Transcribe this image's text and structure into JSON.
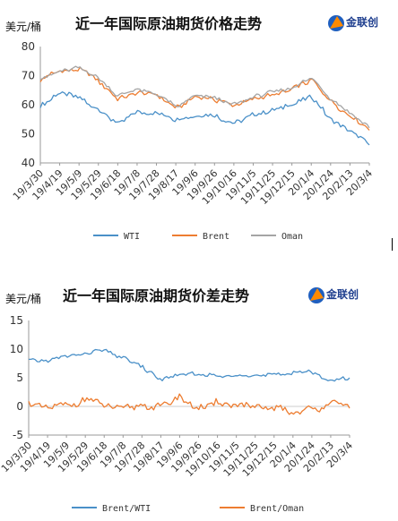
{
  "page": {
    "width": 444,
    "height": 582
  },
  "logo": {
    "text": "金联创"
  },
  "chart_data": [
    {
      "type": "line",
      "title": "近一年国际原油期货价格走势",
      "ylabel": "美元/桶",
      "ylim": [
        40,
        80
      ],
      "yticks": [
        40,
        50,
        60,
        70,
        80
      ],
      "categories": [
        "19/3/30",
        "19/4/19",
        "19/5/9",
        "19/5/29",
        "19/6/18",
        "19/7/8",
        "19/7/28",
        "19/8/17",
        "19/9/6",
        "19/9/26",
        "19/10/16",
        "19/11/5",
        "19/11/25",
        "19/12/15",
        "20/1/4",
        "20/1/24",
        "20/2/13",
        "20/3/4"
      ],
      "series": [
        {
          "name": "WTI",
          "color": "#4a90c8",
          "values": [
            60.1,
            63.8,
            62.5,
            58.2,
            53.5,
            57.3,
            56.8,
            55.1,
            56.5,
            56.2,
            53.9,
            56.7,
            57.9,
            60.2,
            62.9,
            55.2,
            51.5,
            46.3
          ]
        },
        {
          "name": "Brent",
          "color": "#ed7d31",
          "values": [
            68.4,
            71.9,
            72.4,
            68.3,
            62.1,
            64.3,
            63.2,
            58.6,
            62.5,
            62.0,
            59.4,
            62.1,
            63.4,
            65.3,
            68.6,
            61.1,
            56.3,
            51.5
          ]
        },
        {
          "name": "Oman",
          "color": "#a5a5a5",
          "values": [
            68.9,
            71.5,
            72.8,
            69.4,
            62.9,
            65.1,
            64.0,
            59.4,
            62.9,
            62.5,
            59.8,
            62.7,
            64.1,
            65.8,
            69.3,
            62.0,
            56.9,
            52.3
          ]
        }
      ]
    },
    {
      "type": "line",
      "title": "近一年国际原油期货价差走势",
      "ylabel": "美元/桶",
      "ylim": [
        -5,
        15
      ],
      "yticks": [
        -5,
        0,
        5,
        10,
        15
      ],
      "categories": [
        "19/3/30",
        "19/4/19",
        "19/5/9",
        "19/5/29",
        "19/6/18",
        "19/7/8",
        "19/7/28",
        "19/8/17",
        "19/9/6",
        "19/9/26",
        "19/10/16",
        "19/11/5",
        "19/11/25",
        "19/12/15",
        "20/1/4",
        "20/1/24",
        "20/2/13",
        "20/3/4"
      ],
      "series": [
        {
          "name": "Brent/WTI",
          "color": "#4a90c8",
          "values": [
            8.0,
            7.8,
            8.6,
            9.2,
            9.8,
            8.3,
            7.0,
            4.6,
            5.5,
            5.7,
            5.3,
            5.4,
            5.6,
            5.3,
            6.0,
            5.9,
            4.6,
            4.8
          ]
        },
        {
          "name": "Brent/Oman",
          "color": "#ed7d31",
          "values": [
            0.4,
            -0.2,
            0.3,
            1.2,
            0.2,
            -0.5,
            0.5,
            -0.3,
            1.6,
            -0.4,
            0.6,
            0.2,
            -0.3,
            -0.4,
            -0.8,
            -0.6,
            0.6,
            0.2
          ]
        }
      ]
    }
  ]
}
